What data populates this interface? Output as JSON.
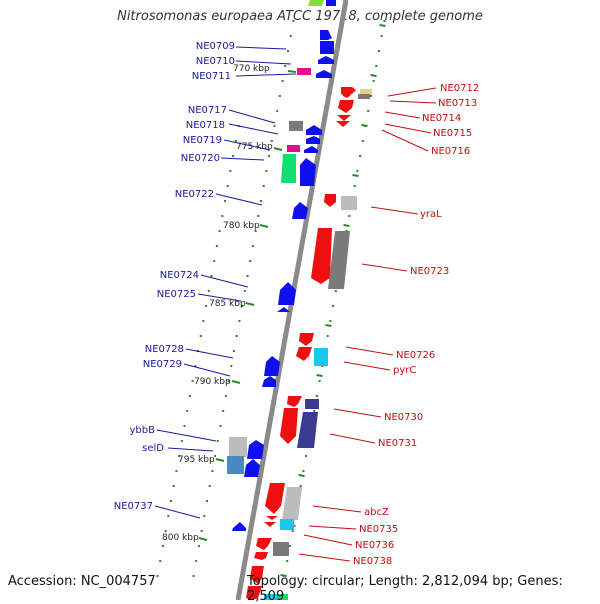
{
  "title": "Nitrosomonas europaea ATCC 19718, complete genome",
  "footer": {
    "accession": "Accession: NC_004757",
    "summary": "Topology: circular; Length: 2,812,094 bp; Genes: 2,509"
  },
  "kbp_labels": [
    "770 kbp",
    "775 kbp",
    "780 kbp",
    "785 kbp",
    "790 kbp",
    "795 kbp",
    "800 kbp"
  ],
  "colors": {
    "forward": "#1010ee",
    "reverse": "#ee1010",
    "forward_label": "#1a1aa0",
    "reverse_label": "#c01010",
    "ruler": "#888888",
    "tick": "#2a8a2a",
    "gray_gene": "#7a7a7a",
    "light_gray_gene": "#bcbcbc",
    "navy_gene": "#3a3a90",
    "cyan_gene": "#19c8f0",
    "green_gene": "#10e070",
    "magenta_gene": "#e0108a",
    "tan_gene": "#e6d090",
    "steel_gene": "#4a88c0"
  },
  "left_genes": [
    {
      "name": "NE0709"
    },
    {
      "name": "NE0710"
    },
    {
      "name": "NE0711"
    },
    {
      "name": "NE0717"
    },
    {
      "name": "NE0718"
    },
    {
      "name": "NE0719"
    },
    {
      "name": "NE0720"
    },
    {
      "name": "NE0722"
    },
    {
      "name": "NE0724"
    },
    {
      "name": "NE0725"
    },
    {
      "name": "NE0728"
    },
    {
      "name": "NE0729"
    },
    {
      "name": "ybbB"
    },
    {
      "name": "selD"
    },
    {
      "name": "NE0737"
    }
  ],
  "right_genes": [
    {
      "name": "NE0712"
    },
    {
      "name": "NE0713"
    },
    {
      "name": "NE0714"
    },
    {
      "name": "NE0715"
    },
    {
      "name": "NE0716"
    },
    {
      "name": "yraL"
    },
    {
      "name": "NE0723"
    },
    {
      "name": "NE0726"
    },
    {
      "name": "pyrC"
    },
    {
      "name": "NE0730"
    },
    {
      "name": "NE0731"
    },
    {
      "name": "abcZ"
    },
    {
      "name": "NE0735"
    },
    {
      "name": "NE0736"
    },
    {
      "name": "NE0738"
    }
  ]
}
